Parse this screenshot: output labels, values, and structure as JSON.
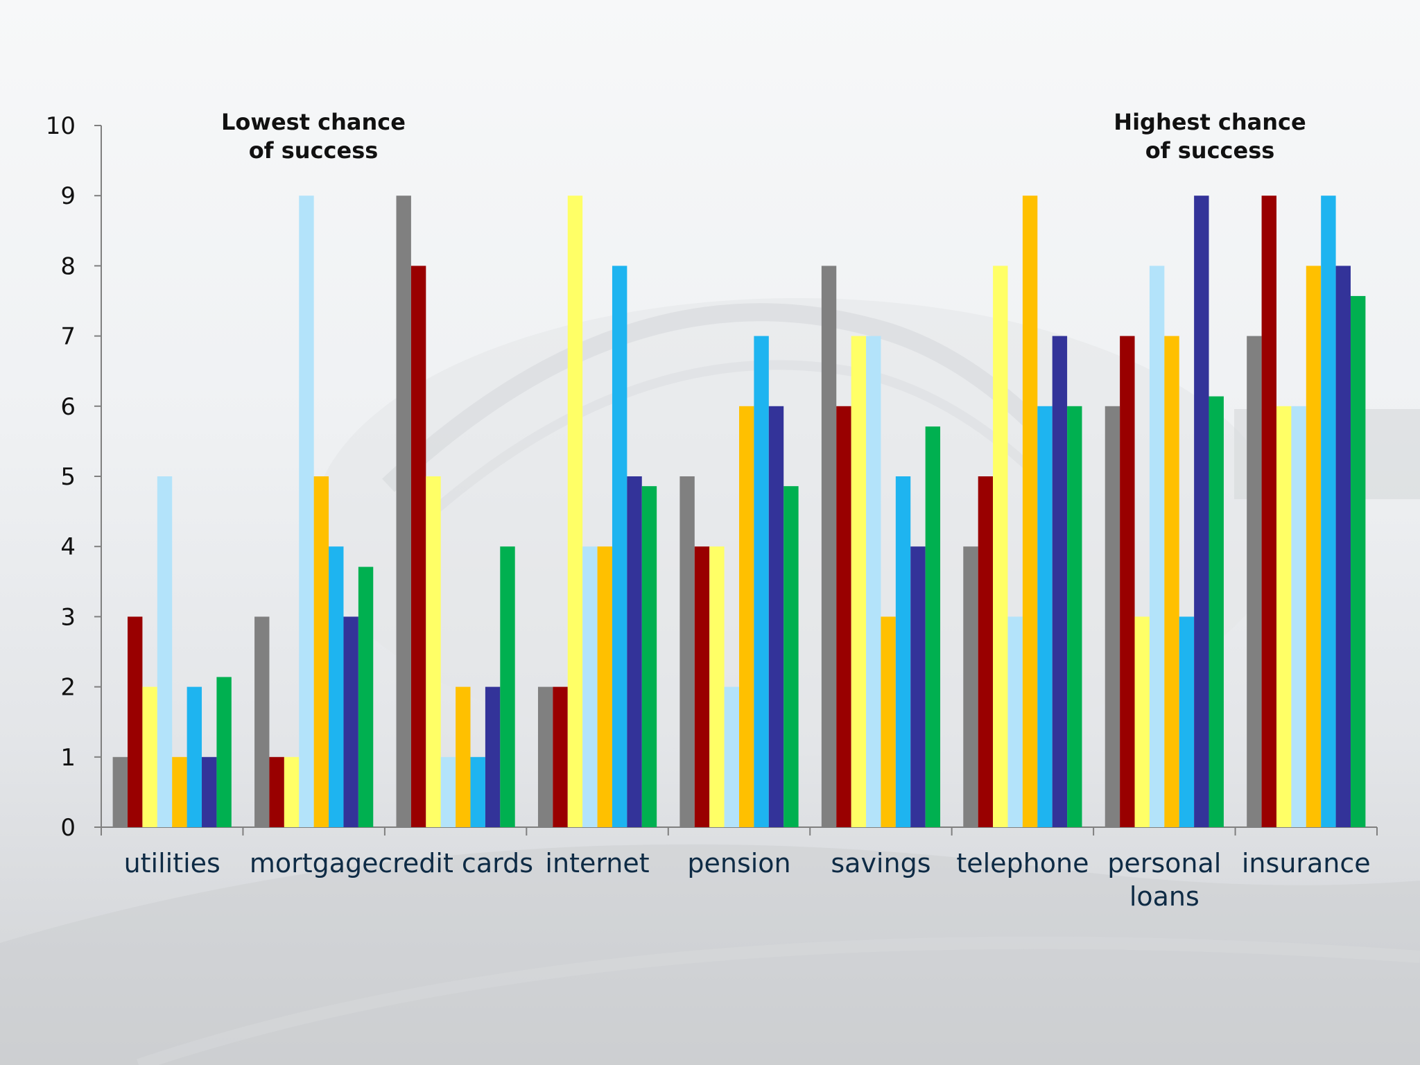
{
  "chart_data": {
    "type": "bar",
    "categories": [
      "utilities",
      "mortgage",
      "credit cards",
      "internet",
      "pension",
      "savings",
      "telephone",
      "personal loans",
      "insurance"
    ],
    "category_lines": [
      [
        "utilities"
      ],
      [
        "mortgage"
      ],
      [
        "credit cards"
      ],
      [
        "internet"
      ],
      [
        "pension"
      ],
      [
        "savings"
      ],
      [
        "telephone"
      ],
      [
        "personal",
        "loans"
      ],
      [
        "insurance"
      ]
    ],
    "series": [
      {
        "color": "#808080",
        "values": [
          1,
          3,
          9,
          2,
          5,
          8,
          4,
          6,
          7
        ]
      },
      {
        "color": "#990000",
        "values": [
          3,
          1,
          8,
          2,
          4,
          6,
          5,
          7,
          9
        ]
      },
      {
        "color": "#ffff66",
        "values": [
          2,
          1,
          5,
          9,
          4,
          7,
          8,
          3,
          6
        ]
      },
      {
        "color": "#b3e3fa",
        "values": [
          5,
          9,
          1,
          4,
          2,
          7,
          3,
          8,
          6
        ]
      },
      {
        "color": "#ffc000",
        "values": [
          1,
          5,
          2,
          4,
          6,
          3,
          9,
          7,
          8
        ]
      },
      {
        "color": "#1eb4f0",
        "values": [
          2,
          4,
          1,
          8,
          7,
          5,
          6,
          3,
          9
        ]
      },
      {
        "color": "#333399",
        "values": [
          1,
          3,
          2,
          5,
          6,
          4,
          7,
          9,
          8
        ]
      },
      {
        "color": "#00b050",
        "values": [
          2.14,
          3.71,
          4,
          4.86,
          4.86,
          5.71,
          6,
          6.14,
          7.57
        ]
      }
    ],
    "ylim": [
      0,
      10
    ],
    "yticks": [
      0,
      1,
      2,
      3,
      4,
      5,
      6,
      7,
      8,
      9,
      10
    ],
    "annotations": {
      "left": [
        "Lowest chance",
        "of success"
      ],
      "right": [
        "Highest chance",
        "of success"
      ]
    },
    "grid": false,
    "legend": "none"
  }
}
